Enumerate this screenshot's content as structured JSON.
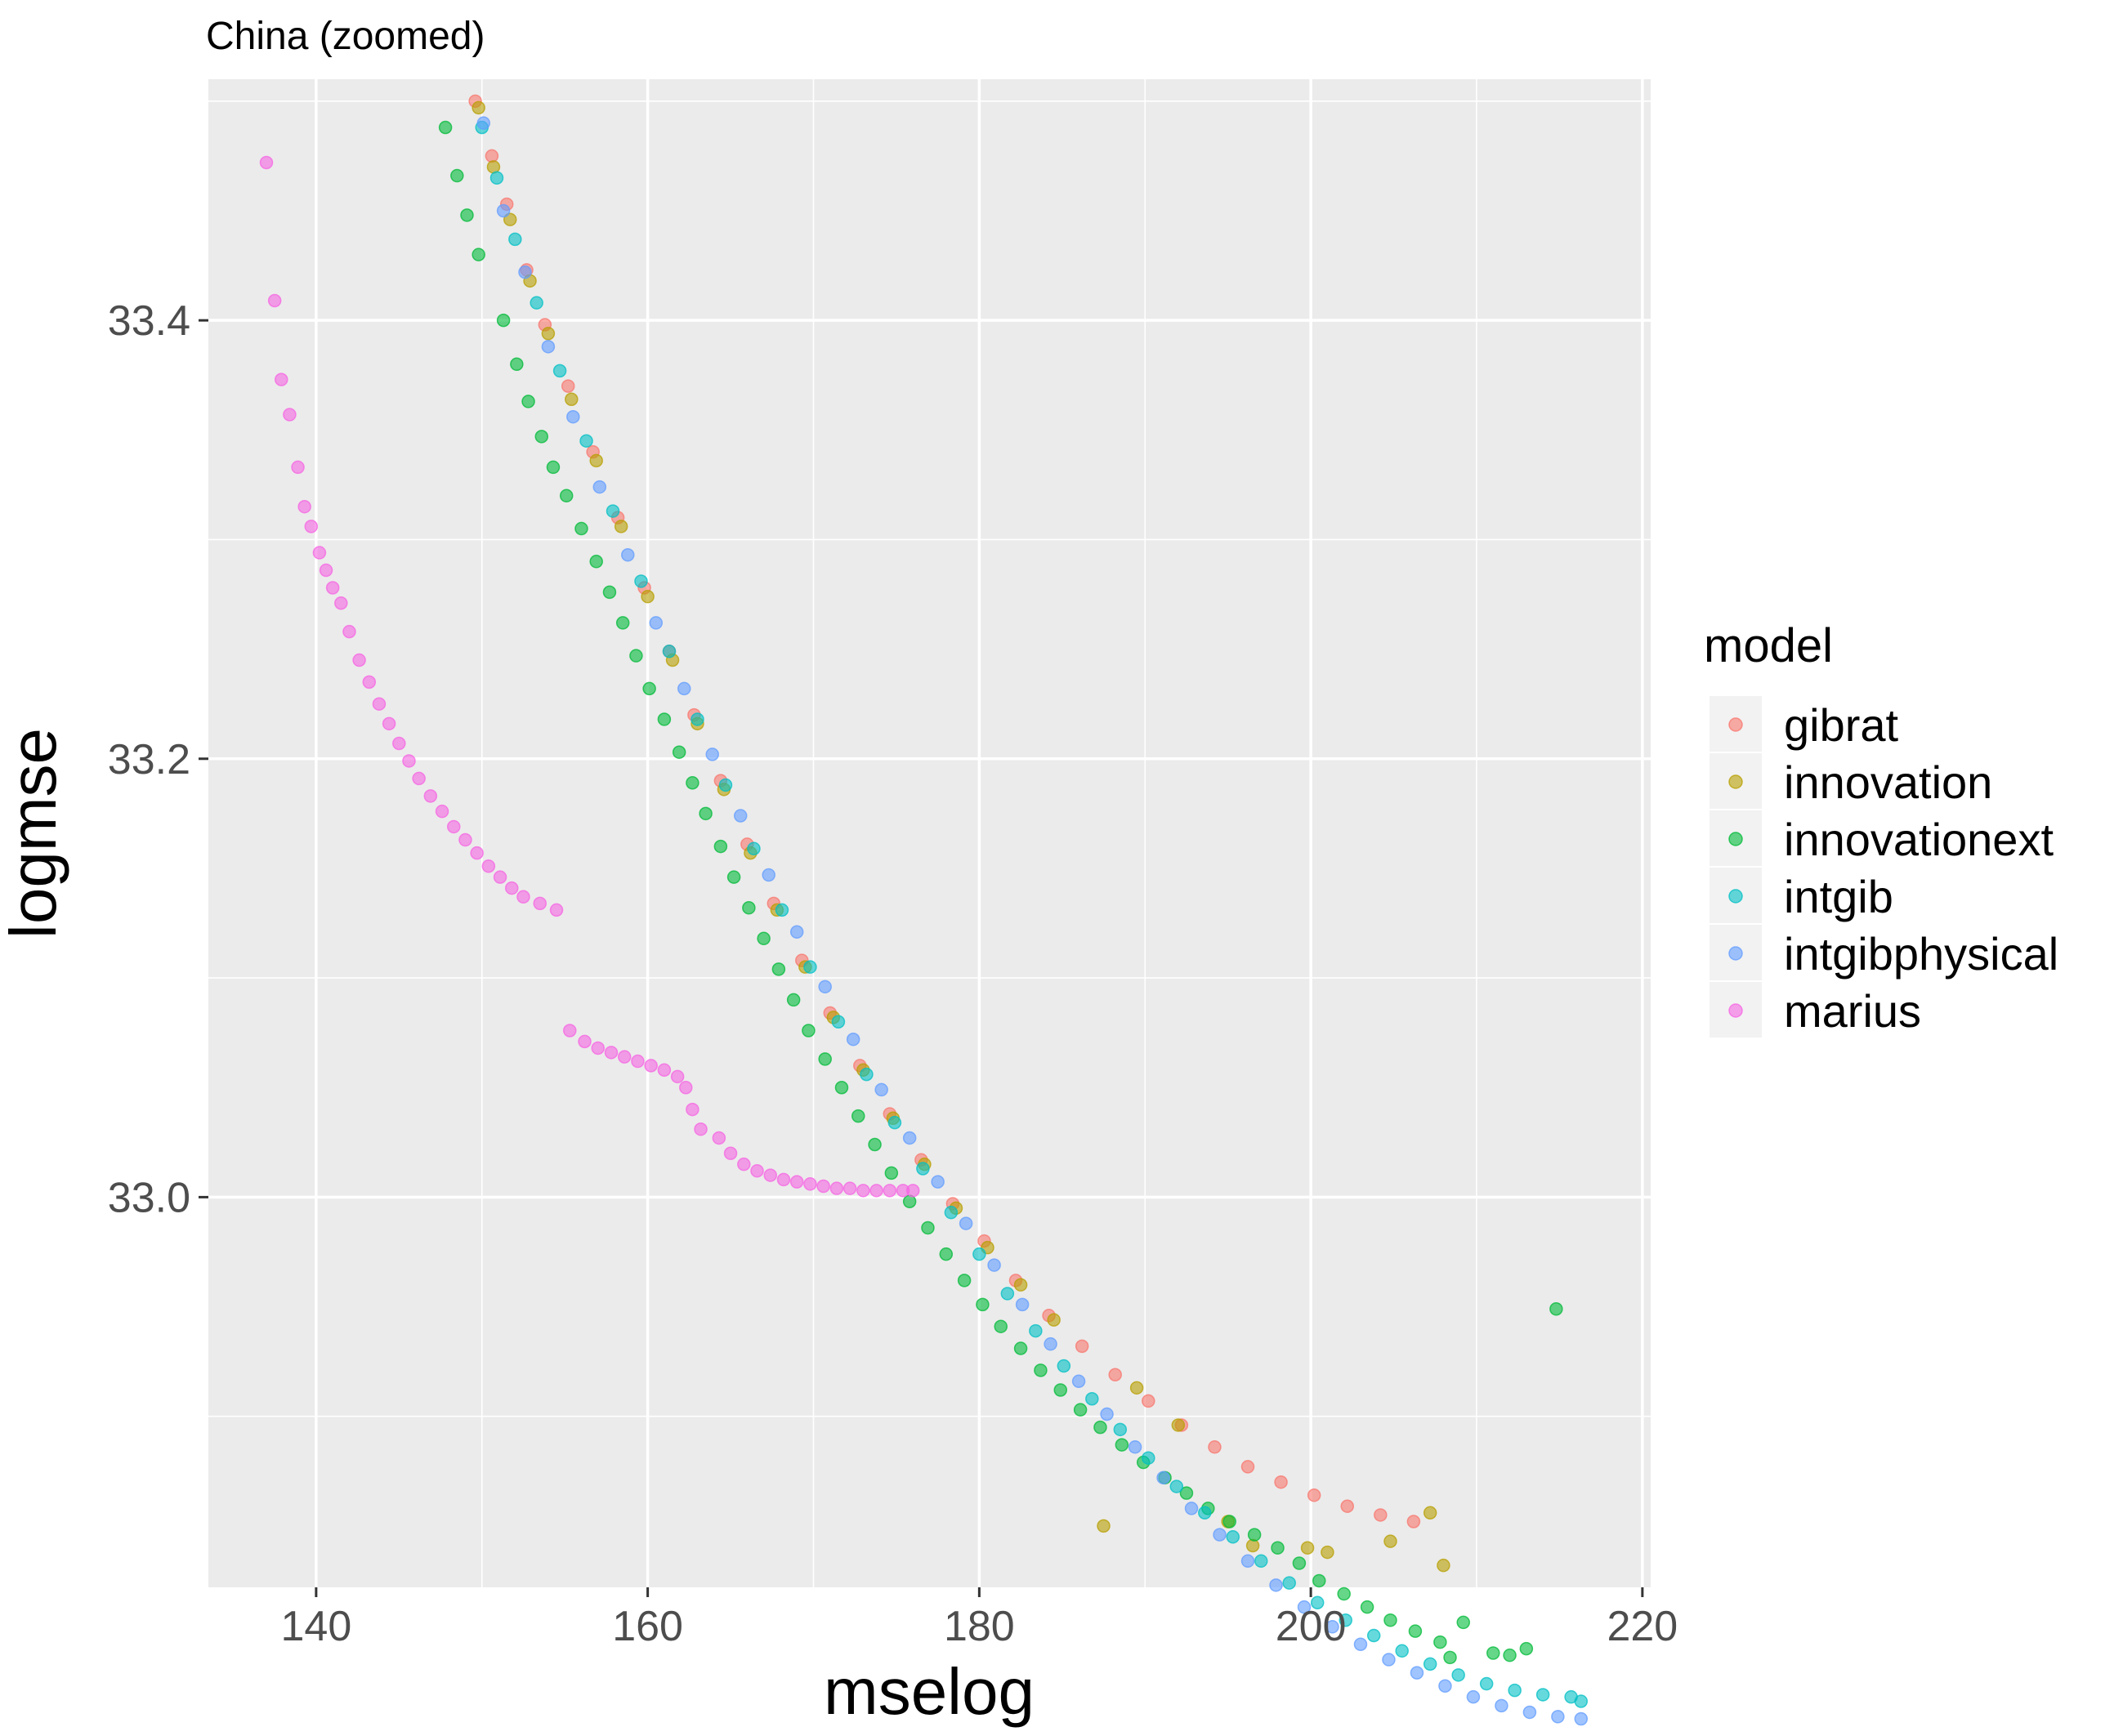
{
  "chart_data": {
    "type": "scatter",
    "title": "China (zoomed)",
    "xlabel": "mselog",
    "ylabel": "logmse",
    "xlim": [
      133.5,
      220.5
    ],
    "ylim": [
      32.822,
      33.51
    ],
    "x_ticks": [
      140,
      160,
      180,
      200,
      220
    ],
    "x_tick_labels": [
      "140",
      "160",
      "180",
      "200",
      "220"
    ],
    "y_ticks": [
      33.0,
      33.2,
      33.4
    ],
    "y_tick_labels": [
      "33.0",
      "33.2",
      "33.4"
    ],
    "grid": true,
    "legend": {
      "title": "model",
      "position": "right"
    },
    "series": [
      {
        "name": "gibrat",
        "color": "#F8766D",
        "points": [
          [
            149.6,
            33.5
          ],
          [
            150.6,
            33.475
          ],
          [
            151.5,
            33.453
          ],
          [
            152.7,
            33.423
          ],
          [
            153.8,
            33.398
          ],
          [
            155.2,
            33.37
          ],
          [
            156.7,
            33.34
          ],
          [
            158.2,
            33.31
          ],
          [
            159.8,
            33.278
          ],
          [
            161.3,
            33.249
          ],
          [
            162.8,
            33.22
          ],
          [
            164.4,
            33.19
          ],
          [
            166.0,
            33.161
          ],
          [
            167.6,
            33.134
          ],
          [
            169.3,
            33.108
          ],
          [
            171.0,
            33.084
          ],
          [
            172.8,
            33.06
          ],
          [
            174.6,
            33.038
          ],
          [
            176.5,
            33.017
          ],
          [
            178.4,
            32.997
          ],
          [
            180.3,
            32.98
          ],
          [
            182.2,
            32.962
          ],
          [
            184.2,
            32.946
          ],
          [
            186.2,
            32.932
          ],
          [
            188.2,
            32.919
          ],
          [
            190.2,
            32.907
          ],
          [
            192.2,
            32.896
          ],
          [
            194.2,
            32.886
          ],
          [
            196.2,
            32.877
          ],
          [
            198.2,
            32.87
          ],
          [
            200.2,
            32.864
          ],
          [
            202.2,
            32.859
          ],
          [
            204.2,
            32.855
          ],
          [
            206.2,
            32.852
          ]
        ]
      },
      {
        "name": "innovation",
        "color": "#B79F00",
        "points": [
          [
            149.8,
            33.497
          ],
          [
            150.7,
            33.47
          ],
          [
            151.7,
            33.446
          ],
          [
            152.9,
            33.418
          ],
          [
            154.0,
            33.394
          ],
          [
            155.4,
            33.364
          ],
          [
            156.9,
            33.336
          ],
          [
            158.4,
            33.306
          ],
          [
            160.0,
            33.274
          ],
          [
            161.5,
            33.245
          ],
          [
            163.0,
            33.216
          ],
          [
            164.6,
            33.186
          ],
          [
            166.2,
            33.157
          ],
          [
            167.8,
            33.131
          ],
          [
            169.5,
            33.105
          ],
          [
            171.2,
            33.082
          ],
          [
            173.0,
            33.058
          ],
          [
            174.8,
            33.036
          ],
          [
            176.7,
            33.015
          ],
          [
            178.6,
            32.995
          ],
          [
            180.5,
            32.977
          ],
          [
            182.5,
            32.96
          ],
          [
            184.5,
            32.944
          ],
          [
            187.5,
            32.85
          ],
          [
            189.5,
            32.913
          ],
          [
            192.0,
            32.896
          ],
          [
            195.0,
            32.852
          ],
          [
            196.5,
            32.841
          ],
          [
            199.8,
            32.84
          ],
          [
            201.0,
            32.838
          ],
          [
            204.8,
            32.843
          ],
          [
            207.2,
            32.856
          ],
          [
            208.0,
            32.832
          ]
        ]
      },
      {
        "name": "innovationext",
        "color": "#00BA38",
        "points": [
          [
            147.8,
            33.488
          ],
          [
            148.5,
            33.466
          ],
          [
            149.1,
            33.448
          ],
          [
            149.8,
            33.43
          ],
          [
            151.3,
            33.4
          ],
          [
            152.1,
            33.38
          ],
          [
            152.8,
            33.363
          ],
          [
            153.6,
            33.347
          ],
          [
            154.3,
            33.333
          ],
          [
            155.1,
            33.32
          ],
          [
            156.0,
            33.305
          ],
          [
            156.9,
            33.29
          ],
          [
            157.7,
            33.276
          ],
          [
            158.5,
            33.262
          ],
          [
            159.3,
            33.247
          ],
          [
            160.1,
            33.232
          ],
          [
            161.0,
            33.218
          ],
          [
            161.9,
            33.203
          ],
          [
            162.7,
            33.189
          ],
          [
            163.5,
            33.175
          ],
          [
            164.4,
            33.16
          ],
          [
            165.2,
            33.146
          ],
          [
            166.1,
            33.132
          ],
          [
            167.0,
            33.118
          ],
          [
            167.9,
            33.104
          ],
          [
            168.8,
            33.09
          ],
          [
            169.7,
            33.076
          ],
          [
            170.7,
            33.063
          ],
          [
            171.7,
            33.05
          ],
          [
            172.7,
            33.037
          ],
          [
            173.7,
            33.024
          ],
          [
            174.7,
            33.011
          ],
          [
            175.8,
            32.998
          ],
          [
            176.9,
            32.986
          ],
          [
            178.0,
            32.974
          ],
          [
            179.1,
            32.962
          ],
          [
            180.2,
            32.951
          ],
          [
            181.3,
            32.941
          ],
          [
            182.5,
            32.931
          ],
          [
            183.7,
            32.921
          ],
          [
            184.9,
            32.912
          ],
          [
            186.1,
            32.903
          ],
          [
            187.3,
            32.895
          ],
          [
            188.6,
            32.887
          ],
          [
            189.9,
            32.879
          ],
          [
            191.2,
            32.872
          ],
          [
            192.5,
            32.865
          ],
          [
            193.8,
            32.858
          ],
          [
            195.1,
            32.852
          ],
          [
            196.6,
            32.846
          ],
          [
            198.0,
            32.84
          ],
          [
            199.3,
            32.833
          ],
          [
            200.5,
            32.825
          ],
          [
            202.0,
            32.819
          ],
          [
            203.4,
            32.813
          ],
          [
            204.8,
            32.807
          ],
          [
            206.3,
            32.802
          ],
          [
            207.8,
            32.797
          ],
          [
            208.4,
            32.79
          ],
          [
            209.2,
            32.806
          ],
          [
            211.0,
            32.792
          ],
          [
            212.0,
            32.791
          ],
          [
            213.0,
            32.794
          ],
          [
            214.8,
            32.949
          ]
        ]
      },
      {
        "name": "intgib",
        "color": "#00BFC4",
        "points": [
          [
            150.0,
            33.488
          ],
          [
            150.9,
            33.465
          ],
          [
            152.0,
            33.437
          ],
          [
            153.3,
            33.408
          ],
          [
            154.7,
            33.377
          ],
          [
            156.3,
            33.345
          ],
          [
            157.9,
            33.313
          ],
          [
            159.6,
            33.281
          ],
          [
            161.3,
            33.249
          ],
          [
            163.0,
            33.218
          ],
          [
            164.7,
            33.188
          ],
          [
            166.4,
            33.159
          ],
          [
            168.1,
            33.131
          ],
          [
            169.8,
            33.105
          ],
          [
            171.5,
            33.08
          ],
          [
            173.2,
            33.056
          ],
          [
            174.9,
            33.034
          ],
          [
            176.6,
            33.013
          ],
          [
            178.3,
            32.993
          ],
          [
            180.0,
            32.974
          ],
          [
            181.7,
            32.956
          ],
          [
            183.4,
            32.939
          ],
          [
            185.1,
            32.923
          ],
          [
            186.8,
            32.908
          ],
          [
            188.5,
            32.894
          ],
          [
            190.2,
            32.881
          ],
          [
            191.9,
            32.868
          ],
          [
            193.6,
            32.856
          ],
          [
            195.3,
            32.845
          ],
          [
            197.0,
            32.834
          ],
          [
            198.7,
            32.824
          ],
          [
            200.4,
            32.815
          ],
          [
            202.1,
            32.807
          ],
          [
            203.8,
            32.8
          ],
          [
            205.5,
            32.793
          ],
          [
            207.2,
            32.787
          ],
          [
            208.9,
            32.782
          ],
          [
            210.6,
            32.778
          ],
          [
            212.3,
            32.775
          ],
          [
            214.0,
            32.773
          ],
          [
            215.7,
            32.772
          ],
          [
            216.3,
            32.77
          ]
        ]
      },
      {
        "name": "intgibphysical",
        "color": "#619CFF",
        "points": [
          [
            150.1,
            33.49
          ],
          [
            151.3,
            33.45
          ],
          [
            152.6,
            33.422
          ],
          [
            154.0,
            33.388
          ],
          [
            155.5,
            33.356
          ],
          [
            157.1,
            33.324
          ],
          [
            158.8,
            33.293
          ],
          [
            160.5,
            33.262
          ],
          [
            162.2,
            33.232
          ],
          [
            163.9,
            33.202
          ],
          [
            165.6,
            33.174
          ],
          [
            167.3,
            33.147
          ],
          [
            169.0,
            33.121
          ],
          [
            170.7,
            33.096
          ],
          [
            172.4,
            33.072
          ],
          [
            174.1,
            33.049
          ],
          [
            175.8,
            33.027
          ],
          [
            177.5,
            33.007
          ],
          [
            179.2,
            32.988
          ],
          [
            180.9,
            32.969
          ],
          [
            182.6,
            32.951
          ],
          [
            184.3,
            32.933
          ],
          [
            186.0,
            32.916
          ],
          [
            187.7,
            32.901
          ],
          [
            189.4,
            32.886
          ],
          [
            191.1,
            32.872
          ],
          [
            192.8,
            32.858
          ],
          [
            194.5,
            32.846
          ],
          [
            196.2,
            32.834
          ],
          [
            197.9,
            32.823
          ],
          [
            199.6,
            32.813
          ],
          [
            201.3,
            32.804
          ],
          [
            203.0,
            32.796
          ],
          [
            204.7,
            32.789
          ],
          [
            206.4,
            32.783
          ],
          [
            208.1,
            32.777
          ],
          [
            209.8,
            32.772
          ],
          [
            211.5,
            32.768
          ],
          [
            213.2,
            32.765
          ],
          [
            214.9,
            32.763
          ],
          [
            216.3,
            32.762
          ]
        ]
      },
      {
        "name": "marius",
        "color": "#F564E3",
        "points": [
          [
            137.0,
            33.472
          ],
          [
            137.5,
            33.409
          ],
          [
            137.9,
            33.373
          ],
          [
            138.4,
            33.357
          ],
          [
            138.9,
            33.333
          ],
          [
            139.3,
            33.315
          ],
          [
            139.7,
            33.306
          ],
          [
            140.2,
            33.294
          ],
          [
            140.6,
            33.286
          ],
          [
            141.0,
            33.278
          ],
          [
            141.5,
            33.271
          ],
          [
            142.0,
            33.258
          ],
          [
            142.6,
            33.245
          ],
          [
            143.2,
            33.235
          ],
          [
            143.8,
            33.225
          ],
          [
            144.4,
            33.216
          ],
          [
            145.0,
            33.207
          ],
          [
            145.6,
            33.199
          ],
          [
            146.2,
            33.191
          ],
          [
            146.9,
            33.183
          ],
          [
            147.6,
            33.176
          ],
          [
            148.3,
            33.169
          ],
          [
            149.0,
            33.163
          ],
          [
            149.7,
            33.157
          ],
          [
            150.4,
            33.151
          ],
          [
            151.1,
            33.146
          ],
          [
            151.8,
            33.141
          ],
          [
            152.5,
            33.137
          ],
          [
            153.5,
            33.134
          ],
          [
            154.5,
            33.131
          ],
          [
            155.3,
            33.076
          ],
          [
            156.2,
            33.071
          ],
          [
            157.0,
            33.068
          ],
          [
            157.8,
            33.066
          ],
          [
            158.6,
            33.064
          ],
          [
            159.4,
            33.062
          ],
          [
            160.2,
            33.06
          ],
          [
            161.0,
            33.058
          ],
          [
            161.8,
            33.055
          ],
          [
            162.3,
            33.05
          ],
          [
            162.7,
            33.04
          ],
          [
            163.2,
            33.031
          ],
          [
            164.3,
            33.027
          ],
          [
            165.0,
            33.02
          ],
          [
            165.8,
            33.015
          ],
          [
            166.6,
            33.012
          ],
          [
            167.4,
            33.01
          ],
          [
            168.2,
            33.008
          ],
          [
            169.0,
            33.007
          ],
          [
            169.8,
            33.006
          ],
          [
            170.6,
            33.005
          ],
          [
            171.4,
            33.004
          ],
          [
            172.2,
            33.004
          ],
          [
            173.0,
            33.003
          ],
          [
            173.8,
            33.003
          ],
          [
            174.6,
            33.003
          ],
          [
            175.4,
            33.003
          ],
          [
            176.0,
            33.003
          ]
        ]
      }
    ]
  }
}
